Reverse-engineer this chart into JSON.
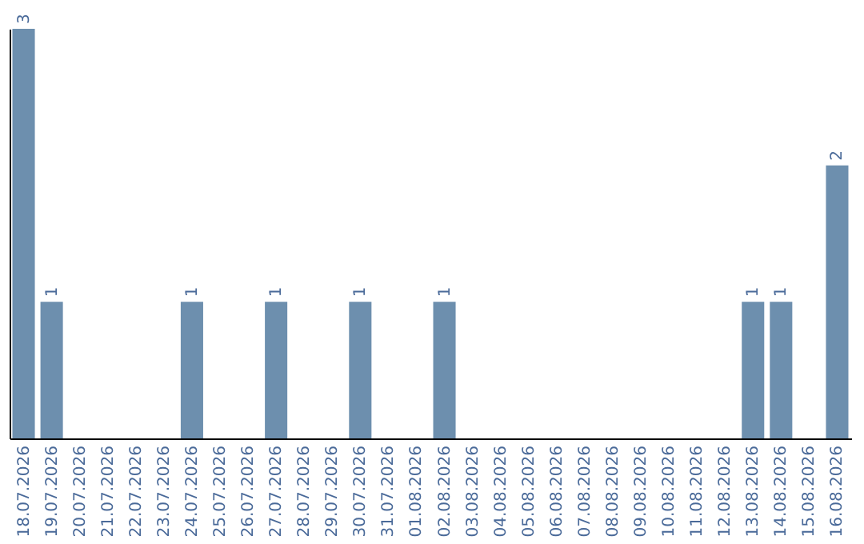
{
  "chart_data": {
    "type": "bar",
    "categories": [
      "18.07.2026",
      "19.07.2026",
      "20.07.2026",
      "21.07.2026",
      "22.07.2026",
      "23.07.2026",
      "24.07.2026",
      "25.07.2026",
      "26.07.2026",
      "27.07.2026",
      "28.07.2026",
      "29.07.2026",
      "30.07.2026",
      "31.07.2026",
      "01.08.2026",
      "02.08.2026",
      "03.08.2026",
      "04.08.2026",
      "05.08.2026",
      "06.08.2026",
      "07.08.2026",
      "08.08.2026",
      "09.08.2026",
      "10.08.2026",
      "11.08.2026",
      "12.08.2026",
      "13.08.2026",
      "14.08.2026",
      "15.08.2026",
      "16.08.2026"
    ],
    "values": [
      3,
      1,
      0,
      0,
      0,
      0,
      1,
      0,
      0,
      1,
      0,
      0,
      1,
      0,
      0,
      1,
      0,
      0,
      0,
      0,
      0,
      0,
      0,
      0,
      0,
      0,
      1,
      1,
      0,
      2
    ],
    "value_labels": [
      "3",
      "1",
      null,
      null,
      null,
      null,
      "1",
      null,
      null,
      "1",
      null,
      null,
      "1",
      null,
      null,
      "1",
      null,
      null,
      null,
      null,
      null,
      null,
      null,
      null,
      null,
      null,
      "1",
      "1",
      null,
      "2"
    ],
    "color": "#6d8fae"
  }
}
